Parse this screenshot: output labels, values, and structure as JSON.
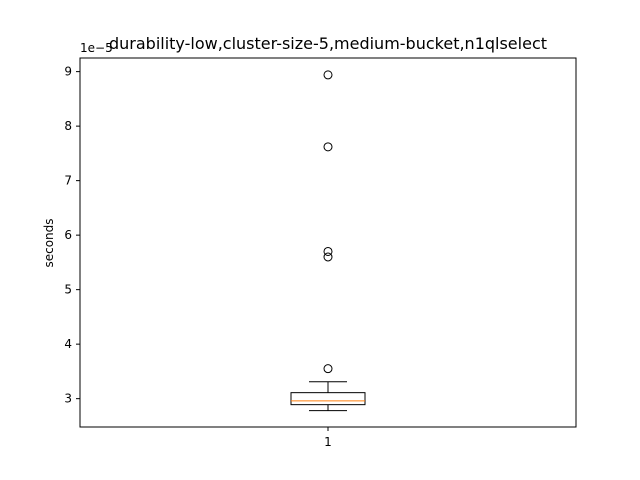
{
  "chart_data": {
    "type": "box",
    "title": "durability-low,cluster-size-5,medium-bucket,n1qlselect",
    "xlabel": "",
    "ylabel": "seconds",
    "offset_label": "1e−5",
    "scale_exponent": -5,
    "categories": [
      "1"
    ],
    "ylim": [
      2.48e-05,
      9.25e-05
    ],
    "yticks": [
      3e-05,
      4e-05,
      5e-05,
      6e-05,
      7e-05,
      8e-05,
      9e-05
    ],
    "ytick_labels": [
      "3",
      "4",
      "5",
      "6",
      "7",
      "8",
      "9"
    ],
    "grid": false,
    "box": {
      "whisker_low": 2.78e-05,
      "q1": 2.89e-05,
      "median": 2.96e-05,
      "q3": 3.11e-05,
      "whisker_high": 3.31e-05
    },
    "outliers": [
      3.55e-05,
      5.6e-05,
      5.7e-05,
      7.62e-05,
      8.94e-05
    ],
    "colors": {
      "box": "#000000",
      "median": "#ff7f0e",
      "outlier": "#000000"
    }
  }
}
